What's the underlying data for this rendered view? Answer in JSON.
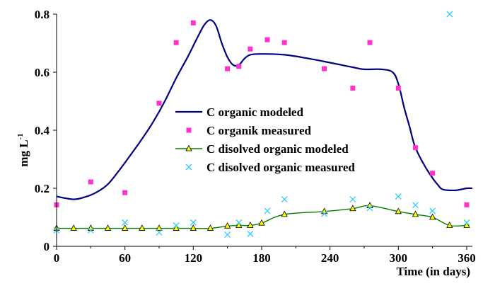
{
  "chart_data": {
    "type": "line",
    "title": "",
    "xlabel": "Time (in days)",
    "ylabel": {
      "base": "mg L",
      "sup": "-1"
    },
    "xlim": [
      0,
      365
    ],
    "ylim": [
      0,
      0.8
    ],
    "xticks": [
      0,
      60,
      120,
      180,
      240,
      300,
      360
    ],
    "xtick_labels": [
      "0",
      "60",
      "120",
      "180",
      "240",
      "300",
      "360"
    ],
    "yticks": [
      0,
      0.2,
      0.4,
      0.6,
      0.8
    ],
    "ytick_labels": [
      "0",
      "0.2",
      "0.4",
      "0.6",
      "0.8"
    ],
    "grid": false,
    "legend_position": "center",
    "series": [
      {
        "name": "C organic modeled",
        "kind": "line",
        "color": "#000080",
        "points": [
          [
            0,
            0.172
          ],
          [
            15,
            0.162
          ],
          [
            25,
            0.17
          ],
          [
            35,
            0.186
          ],
          [
            45,
            0.214
          ],
          [
            55,
            0.262
          ],
          [
            65,
            0.315
          ],
          [
            75,
            0.37
          ],
          [
            85,
            0.43
          ],
          [
            95,
            0.5
          ],
          [
            105,
            0.58
          ],
          [
            115,
            0.652
          ],
          [
            125,
            0.73
          ],
          [
            130,
            0.765
          ],
          [
            135,
            0.78
          ],
          [
            140,
            0.76
          ],
          [
            145,
            0.7
          ],
          [
            150,
            0.652
          ],
          [
            155,
            0.625
          ],
          [
            160,
            0.625
          ],
          [
            165,
            0.647
          ],
          [
            170,
            0.66
          ],
          [
            180,
            0.663
          ],
          [
            200,
            0.66
          ],
          [
            220,
            0.648
          ],
          [
            240,
            0.633
          ],
          [
            260,
            0.617
          ],
          [
            270,
            0.61
          ],
          [
            285,
            0.61
          ],
          [
            295,
            0.6
          ],
          [
            300,
            0.56
          ],
          [
            305,
            0.48
          ],
          [
            310,
            0.41
          ],
          [
            315,
            0.34
          ],
          [
            325,
            0.265
          ],
          [
            335,
            0.21
          ],
          [
            340,
            0.195
          ],
          [
            350,
            0.193
          ],
          [
            355,
            0.196
          ],
          [
            360,
            0.2
          ],
          [
            365,
            0.2
          ]
        ]
      },
      {
        "name": "C organik measured",
        "kind": "markers",
        "marker": "square",
        "color": "#FF33CC",
        "points": [
          [
            0,
            0.143
          ],
          [
            30,
            0.222
          ],
          [
            60,
            0.185
          ],
          [
            90,
            0.493
          ],
          [
            105,
            0.702
          ],
          [
            120,
            0.77
          ],
          [
            150,
            0.612
          ],
          [
            160,
            0.62
          ],
          [
            170,
            0.68
          ],
          [
            185,
            0.712
          ],
          [
            200,
            0.702
          ],
          [
            235,
            0.612
          ],
          [
            260,
            0.545
          ],
          [
            275,
            0.702
          ],
          [
            300,
            0.545
          ],
          [
            315,
            0.34
          ],
          [
            330,
            0.252
          ],
          [
            360,
            0.143
          ]
        ]
      },
      {
        "name": "C  disolved organic modeled",
        "kind": "line-markers",
        "marker": "triangle",
        "color": "#008000",
        "marker_fill": "#FFFF00",
        "points": [
          [
            0,
            0.062
          ],
          [
            15,
            0.062
          ],
          [
            30,
            0.062
          ],
          [
            45,
            0.062
          ],
          [
            60,
            0.062
          ],
          [
            75,
            0.062
          ],
          [
            90,
            0.062
          ],
          [
            105,
            0.062
          ],
          [
            120,
            0.062
          ],
          [
            135,
            0.062
          ],
          [
            150,
            0.07
          ],
          [
            160,
            0.072
          ],
          [
            170,
            0.072
          ],
          [
            180,
            0.08
          ],
          [
            200,
            0.11
          ],
          [
            235,
            0.12
          ],
          [
            260,
            0.13
          ],
          [
            275,
            0.14
          ],
          [
            300,
            0.12
          ],
          [
            315,
            0.11
          ],
          [
            330,
            0.1
          ],
          [
            345,
            0.072
          ],
          [
            360,
            0.072
          ]
        ]
      },
      {
        "name": "C disolved organic measured",
        "kind": "markers",
        "marker": "x",
        "color": "#33CCFF",
        "points": [
          [
            0,
            0.055
          ],
          [
            30,
            0.055
          ],
          [
            60,
            0.082
          ],
          [
            90,
            0.048
          ],
          [
            105,
            0.072
          ],
          [
            120,
            0.082
          ],
          [
            150,
            0.04
          ],
          [
            160,
            0.082
          ],
          [
            170,
            0.043
          ],
          [
            185,
            0.122
          ],
          [
            200,
            0.162
          ],
          [
            235,
            0.112
          ],
          [
            260,
            0.162
          ],
          [
            275,
            0.132
          ],
          [
            300,
            0.172
          ],
          [
            315,
            0.142
          ],
          [
            330,
            0.122
          ],
          [
            345,
            0.8
          ],
          [
            360,
            0.082
          ]
        ]
      }
    ]
  }
}
